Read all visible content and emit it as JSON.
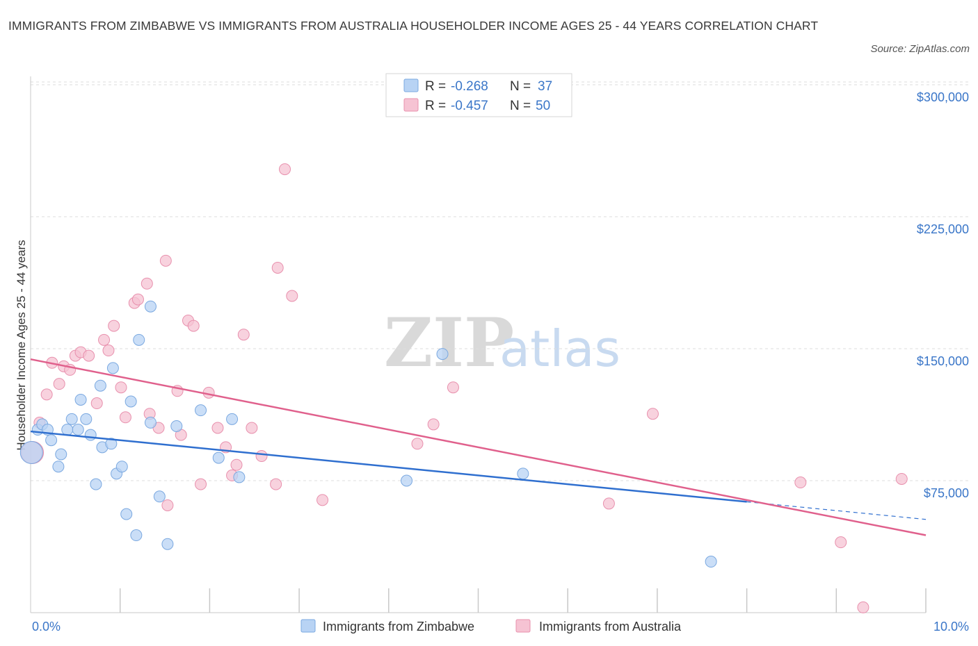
{
  "title": "IMMIGRANTS FROM ZIMBABWE VS IMMIGRANTS FROM AUSTRALIA HOUSEHOLDER INCOME AGES 25 - 44 YEARS CORRELATION CHART",
  "source": "Source: ZipAtlas.com",
  "watermark": {
    "zip": "ZIP",
    "atlas": "atlas"
  },
  "legend_top": {
    "rows": [
      {
        "r_label": "R =",
        "r_value": "-0.268",
        "n_label": "N =",
        "n_value": "37"
      },
      {
        "r_label": "R =",
        "r_value": "-0.457",
        "n_label": "N =",
        "n_value": "50"
      }
    ]
  },
  "legend_bottom": [
    "Immigrants from Zimbabwe",
    "Immigrants from Australia"
  ],
  "colors": {
    "zimbabwe_fill": "#b8d3f4",
    "zimbabwe_stroke": "#7aa8e0",
    "zimbabwe_line": "#2f6fcf",
    "australia_fill": "#f6c3d3",
    "australia_stroke": "#e890ad",
    "australia_line": "#e0608c",
    "axis_text": "#3a76c8",
    "grid": "#dddddd"
  },
  "chart_data": {
    "type": "scatter",
    "title": "IMMIGRANTS FROM ZIMBABWE VS IMMIGRANTS FROM AUSTRALIA HOUSEHOLDER INCOME AGES 25 - 44 YEARS CORRELATION CHART",
    "xlabel": "",
    "ylabel": "Householder Income Ages 25 - 44 years",
    "xlim": [
      0,
      10
    ],
    "ylim": [
      0,
      300000
    ],
    "x_tick_labels": [
      "0.0%",
      "10.0%"
    ],
    "y_ticks": [
      75000,
      150000,
      225000,
      300000
    ],
    "y_tick_labels": [
      "$75,000",
      "$150,000",
      "$225,000",
      "$300,000"
    ],
    "grid": "horizontal dashed",
    "legend_placement": "top-center",
    "series": [
      {
        "name": "Immigrants from Zimbabwe",
        "r": -0.268,
        "n": 37,
        "trend": {
          "x0": 0.0,
          "y0": 103000,
          "x1": 8.0,
          "y1": 63000,
          "dashed_to": 10.0,
          "y_dashed_end": 53000
        },
        "points": [
          [
            0.01,
            91000
          ],
          [
            0.08,
            104000
          ],
          [
            0.13,
            107000
          ],
          [
            0.19,
            104000
          ],
          [
            0.23,
            98000
          ],
          [
            0.31,
            83000
          ],
          [
            0.34,
            90000
          ],
          [
            0.41,
            104000
          ],
          [
            0.46,
            110000
          ],
          [
            0.53,
            104000
          ],
          [
            0.56,
            121000
          ],
          [
            0.62,
            110000
          ],
          [
            0.67,
            101000
          ],
          [
            0.73,
            73000
          ],
          [
            0.78,
            129000
          ],
          [
            0.8,
            94000
          ],
          [
            0.9,
            96000
          ],
          [
            0.92,
            139000
          ],
          [
            0.96,
            79000
          ],
          [
            1.02,
            83000
          ],
          [
            1.07,
            56000
          ],
          [
            1.12,
            120000
          ],
          [
            1.18,
            44000
          ],
          [
            1.21,
            155000
          ],
          [
            1.34,
            108000
          ],
          [
            1.34,
            174000
          ],
          [
            1.44,
            66000
          ],
          [
            1.53,
            39000
          ],
          [
            1.63,
            106000
          ],
          [
            1.9,
            115000
          ],
          [
            2.1,
            88000
          ],
          [
            2.25,
            110000
          ],
          [
            2.33,
            77000
          ],
          [
            4.2,
            75000
          ],
          [
            4.6,
            147000
          ],
          [
            5.5,
            79000
          ],
          [
            7.6,
            29000
          ]
        ]
      },
      {
        "name": "Immigrants from Australia",
        "r": -0.457,
        "n": 50,
        "trend": {
          "x0": 0.0,
          "y0": 144000,
          "x1": 10.0,
          "y1": 44000
        },
        "points": [
          [
            0.02,
            91000
          ],
          [
            0.1,
            108000
          ],
          [
            0.18,
            124000
          ],
          [
            0.24,
            142000
          ],
          [
            0.32,
            130000
          ],
          [
            0.37,
            140000
          ],
          [
            0.44,
            138000
          ],
          [
            0.5,
            146000
          ],
          [
            0.56,
            148000
          ],
          [
            0.65,
            146000
          ],
          [
            0.74,
            119000
          ],
          [
            0.82,
            155000
          ],
          [
            0.87,
            149000
          ],
          [
            0.93,
            163000
          ],
          [
            1.01,
            128000
          ],
          [
            1.06,
            111000
          ],
          [
            1.16,
            176000
          ],
          [
            1.2,
            178000
          ],
          [
            1.3,
            187000
          ],
          [
            1.33,
            113000
          ],
          [
            1.43,
            105000
          ],
          [
            1.51,
            200000
          ],
          [
            1.53,
            61000
          ],
          [
            1.64,
            126000
          ],
          [
            1.68,
            101000
          ],
          [
            1.76,
            166000
          ],
          [
            1.82,
            163000
          ],
          [
            1.9,
            73000
          ],
          [
            1.99,
            125000
          ],
          [
            2.09,
            105000
          ],
          [
            2.18,
            94000
          ],
          [
            2.25,
            78000
          ],
          [
            2.3,
            84000
          ],
          [
            2.38,
            158000
          ],
          [
            2.47,
            105000
          ],
          [
            2.58,
            89000
          ],
          [
            2.74,
            73000
          ],
          [
            2.76,
            196000
          ],
          [
            2.84,
            252000
          ],
          [
            2.92,
            180000
          ],
          [
            3.26,
            64000
          ],
          [
            4.32,
            96000
          ],
          [
            4.5,
            107000
          ],
          [
            4.72,
            128000
          ],
          [
            6.46,
            62000
          ],
          [
            6.95,
            113000
          ],
          [
            8.6,
            74000
          ],
          [
            9.05,
            40000
          ],
          [
            9.3,
            3000
          ],
          [
            9.73,
            76000
          ]
        ]
      }
    ]
  }
}
